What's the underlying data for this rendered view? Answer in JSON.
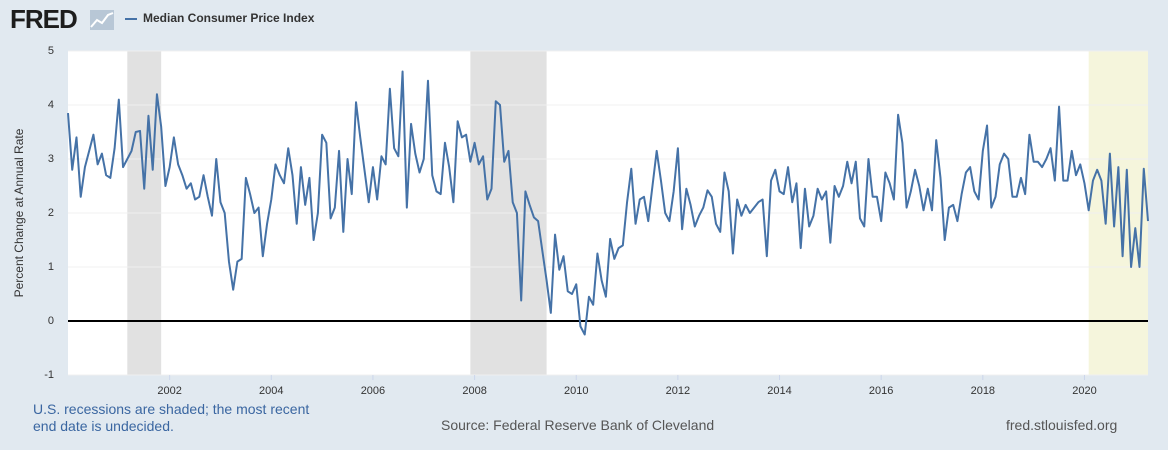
{
  "logo": "FRED",
  "chart_data": {
    "type": "line",
    "y_label": "Percent Change at Annual Rate",
    "note": "U.S. recessions are shaded; the most recent end date is undecided.",
    "source": "Source: Federal Reserve Bank of Cleveland",
    "site": "fred.stlouisfed.org",
    "xlim": [
      2000,
      2021.25
    ],
    "xticks": [
      2002,
      2004,
      2006,
      2008,
      2010,
      2012,
      2014,
      2016,
      2018,
      2020
    ],
    "ylim": [
      -1,
      5
    ],
    "yticks": [
      -1,
      0,
      1,
      2,
      3,
      4,
      5
    ],
    "grid": true,
    "recession_color": "#e1e1e1",
    "undecided_color": "#f5f5dc",
    "recessions": [
      [
        2001.167,
        2001.833
      ],
      [
        2007.917,
        2009.417
      ]
    ],
    "undecided_recession": [
      2020.083,
      2021.25
    ],
    "x": [
      2000,
      2000.083,
      2000.167,
      2000.25,
      2000.333,
      2000.417,
      2000.5,
      2000.583,
      2000.667,
      2000.75,
      2000.833,
      2000.917,
      2001,
      2001.083,
      2001.167,
      2001.25,
      2001.333,
      2001.417,
      2001.5,
      2001.583,
      2001.667,
      2001.75,
      2001.833,
      2001.917,
      2002,
      2002.083,
      2002.167,
      2002.25,
      2002.333,
      2002.417,
      2002.5,
      2002.583,
      2002.667,
      2002.75,
      2002.833,
      2002.917,
      2003,
      2003.083,
      2003.167,
      2003.25,
      2003.333,
      2003.417,
      2003.5,
      2003.583,
      2003.667,
      2003.75,
      2003.833,
      2003.917,
      2004,
      2004.083,
      2004.167,
      2004.25,
      2004.333,
      2004.417,
      2004.5,
      2004.583,
      2004.667,
      2004.75,
      2004.833,
      2004.917,
      2005,
      2005.083,
      2005.167,
      2005.25,
      2005.333,
      2005.417,
      2005.5,
      2005.583,
      2005.667,
      2005.75,
      2005.833,
      2005.917,
      2006,
      2006.083,
      2006.167,
      2006.25,
      2006.333,
      2006.417,
      2006.5,
      2006.583,
      2006.667,
      2006.75,
      2006.833,
      2006.917,
      2007,
      2007.083,
      2007.167,
      2007.25,
      2007.333,
      2007.417,
      2007.5,
      2007.583,
      2007.667,
      2007.75,
      2007.833,
      2007.917,
      2008,
      2008.083,
      2008.167,
      2008.25,
      2008.333,
      2008.417,
      2008.5,
      2008.583,
      2008.667,
      2008.75,
      2008.833,
      2008.917,
      2009,
      2009.083,
      2009.167,
      2009.25,
      2009.333,
      2009.417,
      2009.5,
      2009.583,
      2009.667,
      2009.75,
      2009.833,
      2009.917,
      2010,
      2010.083,
      2010.167,
      2010.25,
      2010.333,
      2010.417,
      2010.5,
      2010.583,
      2010.667,
      2010.75,
      2010.833,
      2010.917,
      2011,
      2011.083,
      2011.167,
      2011.25,
      2011.333,
      2011.417,
      2011.5,
      2011.583,
      2011.667,
      2011.75,
      2011.833,
      2011.917,
      2012,
      2012.083,
      2012.167,
      2012.25,
      2012.333,
      2012.417,
      2012.5,
      2012.583,
      2012.667,
      2012.75,
      2012.833,
      2012.917,
      2013,
      2013.083,
      2013.167,
      2013.25,
      2013.333,
      2013.417,
      2013.5,
      2013.583,
      2013.667,
      2013.75,
      2013.833,
      2013.917,
      2014,
      2014.083,
      2014.167,
      2014.25,
      2014.333,
      2014.417,
      2014.5,
      2014.583,
      2014.667,
      2014.75,
      2014.833,
      2014.917,
      2015,
      2015.083,
      2015.167,
      2015.25,
      2015.333,
      2015.417,
      2015.5,
      2015.583,
      2015.667,
      2015.75,
      2015.833,
      2015.917,
      2016,
      2016.083,
      2016.167,
      2016.25,
      2016.333,
      2016.417,
      2016.5,
      2016.583,
      2016.667,
      2016.75,
      2016.833,
      2016.917,
      2017,
      2017.083,
      2017.167,
      2017.25,
      2017.333,
      2017.417,
      2017.5,
      2017.583,
      2017.667,
      2017.75,
      2017.833,
      2017.917,
      2018,
      2018.083,
      2018.167,
      2018.25,
      2018.333,
      2018.417,
      2018.5,
      2018.583,
      2018.667,
      2018.75,
      2018.833,
      2018.917,
      2019,
      2019.083,
      2019.167,
      2019.25,
      2019.333,
      2019.417,
      2019.5,
      2019.583,
      2019.667,
      2019.75,
      2019.833,
      2019.917,
      2020,
      2020.083,
      2020.167,
      2020.25,
      2020.333,
      2020.417,
      2020.5,
      2020.583,
      2020.667,
      2020.75,
      2020.833,
      2020.917,
      2021,
      2021.083,
      2021.167,
      2021.25
    ],
    "series": [
      {
        "name": "Median Consumer Price Index",
        "color": "#4572a7",
        "values": [
          3.85,
          2.8,
          3.4,
          2.3,
          2.85,
          3.15,
          3.45,
          2.9,
          3.1,
          2.7,
          2.65,
          3.2,
          4.1,
          2.85,
          3.0,
          3.15,
          3.5,
          3.52,
          2.45,
          3.8,
          2.8,
          4.2,
          3.6,
          2.5,
          2.85,
          3.4,
          2.9,
          2.7,
          2.45,
          2.55,
          2.25,
          2.3,
          2.7,
          2.3,
          1.95,
          3.0,
          2.2,
          2.0,
          1.1,
          0.58,
          1.1,
          1.15,
          2.65,
          2.35,
          2.0,
          2.1,
          1.2,
          1.8,
          2.25,
          2.9,
          2.7,
          2.55,
          3.2,
          2.7,
          1.8,
          2.85,
          2.15,
          2.65,
          1.5,
          2.0,
          3.45,
          3.3,
          1.9,
          2.1,
          3.15,
          1.65,
          3.0,
          2.35,
          4.05,
          3.4,
          2.8,
          2.2,
          2.85,
          2.25,
          3.05,
          2.9,
          4.3,
          3.2,
          3.05,
          4.62,
          2.1,
          3.65,
          3.1,
          2.75,
          3.0,
          4.45,
          2.7,
          2.4,
          2.35,
          3.3,
          2.85,
          2.2,
          3.7,
          3.4,
          3.45,
          2.95,
          3.3,
          2.9,
          3.05,
          2.25,
          2.45,
          4.07,
          4.0,
          2.95,
          3.15,
          2.2,
          2.0,
          0.38,
          2.4,
          2.15,
          1.92,
          1.85,
          1.3,
          0.75,
          0.15,
          1.6,
          0.95,
          1.2,
          0.55,
          0.5,
          0.68,
          -0.1,
          -0.25,
          0.45,
          0.3,
          1.25,
          0.75,
          0.45,
          1.52,
          1.15,
          1.35,
          1.4,
          2.2,
          2.82,
          1.8,
          2.25,
          2.3,
          1.85,
          2.5,
          3.15,
          2.6,
          2.0,
          1.85,
          2.4,
          3.2,
          1.7,
          2.45,
          2.15,
          1.75,
          1.95,
          2.1,
          2.42,
          2.3,
          1.8,
          1.65,
          2.75,
          2.4,
          1.25,
          2.25,
          1.95,
          2.15,
          2.0,
          2.1,
          2.2,
          2.25,
          1.2,
          2.6,
          2.8,
          2.4,
          2.35,
          2.85,
          2.2,
          2.55,
          1.35,
          2.45,
          1.75,
          1.95,
          2.45,
          2.25,
          2.4,
          1.45,
          2.5,
          2.3,
          2.5,
          2.95,
          2.55,
          2.95,
          1.9,
          1.75,
          3.0,
          2.3,
          2.3,
          1.85,
          2.75,
          2.55,
          2.25,
          3.82,
          3.3,
          2.1,
          2.4,
          2.8,
          2.5,
          2.05,
          2.45,
          2.05,
          3.35,
          2.65,
          1.5,
          2.1,
          2.15,
          1.85,
          2.35,
          2.75,
          2.85,
          2.4,
          2.25,
          3.15,
          3.62,
          2.1,
          2.3,
          2.9,
          3.1,
          3.0,
          2.3,
          2.3,
          2.65,
          2.35,
          3.45,
          2.95,
          2.95,
          2.85,
          3.0,
          3.2,
          2.6,
          3.97,
          2.6,
          2.6,
          3.15,
          2.7,
          2.9,
          2.55,
          2.05,
          2.6,
          2.8,
          2.6,
          1.8,
          3.1,
          1.75,
          2.85,
          1.2,
          2.8,
          1.0,
          1.72,
          1.0,
          2.82,
          1.85
        ]
      }
    ]
  }
}
